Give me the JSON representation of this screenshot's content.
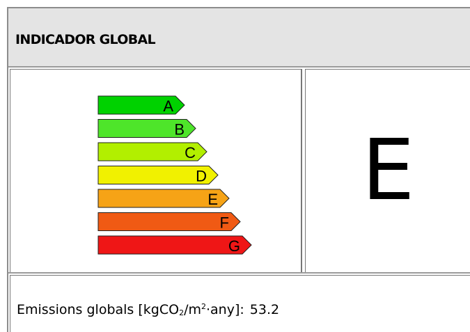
{
  "header": {
    "title": "INDICADOR GLOBAL"
  },
  "scale": {
    "bands": [
      {
        "letter": "A",
        "color": "#00d200"
      },
      {
        "letter": "B",
        "color": "#4ee52a"
      },
      {
        "letter": "C",
        "color": "#b2ef00"
      },
      {
        "letter": "D",
        "color": "#f1f100"
      },
      {
        "letter": "E",
        "color": "#f6a316"
      },
      {
        "letter": "F",
        "color": "#f05a14"
      },
      {
        "letter": "G",
        "color": "#ef1616"
      }
    ]
  },
  "rating": {
    "letter": "E"
  },
  "emissions": {
    "label_prefix": "Emissions globals [kgCO",
    "sub": "2",
    "label_mid": "/m",
    "sup": "2",
    "label_suffix": "·any]:",
    "value": "53.2"
  }
}
